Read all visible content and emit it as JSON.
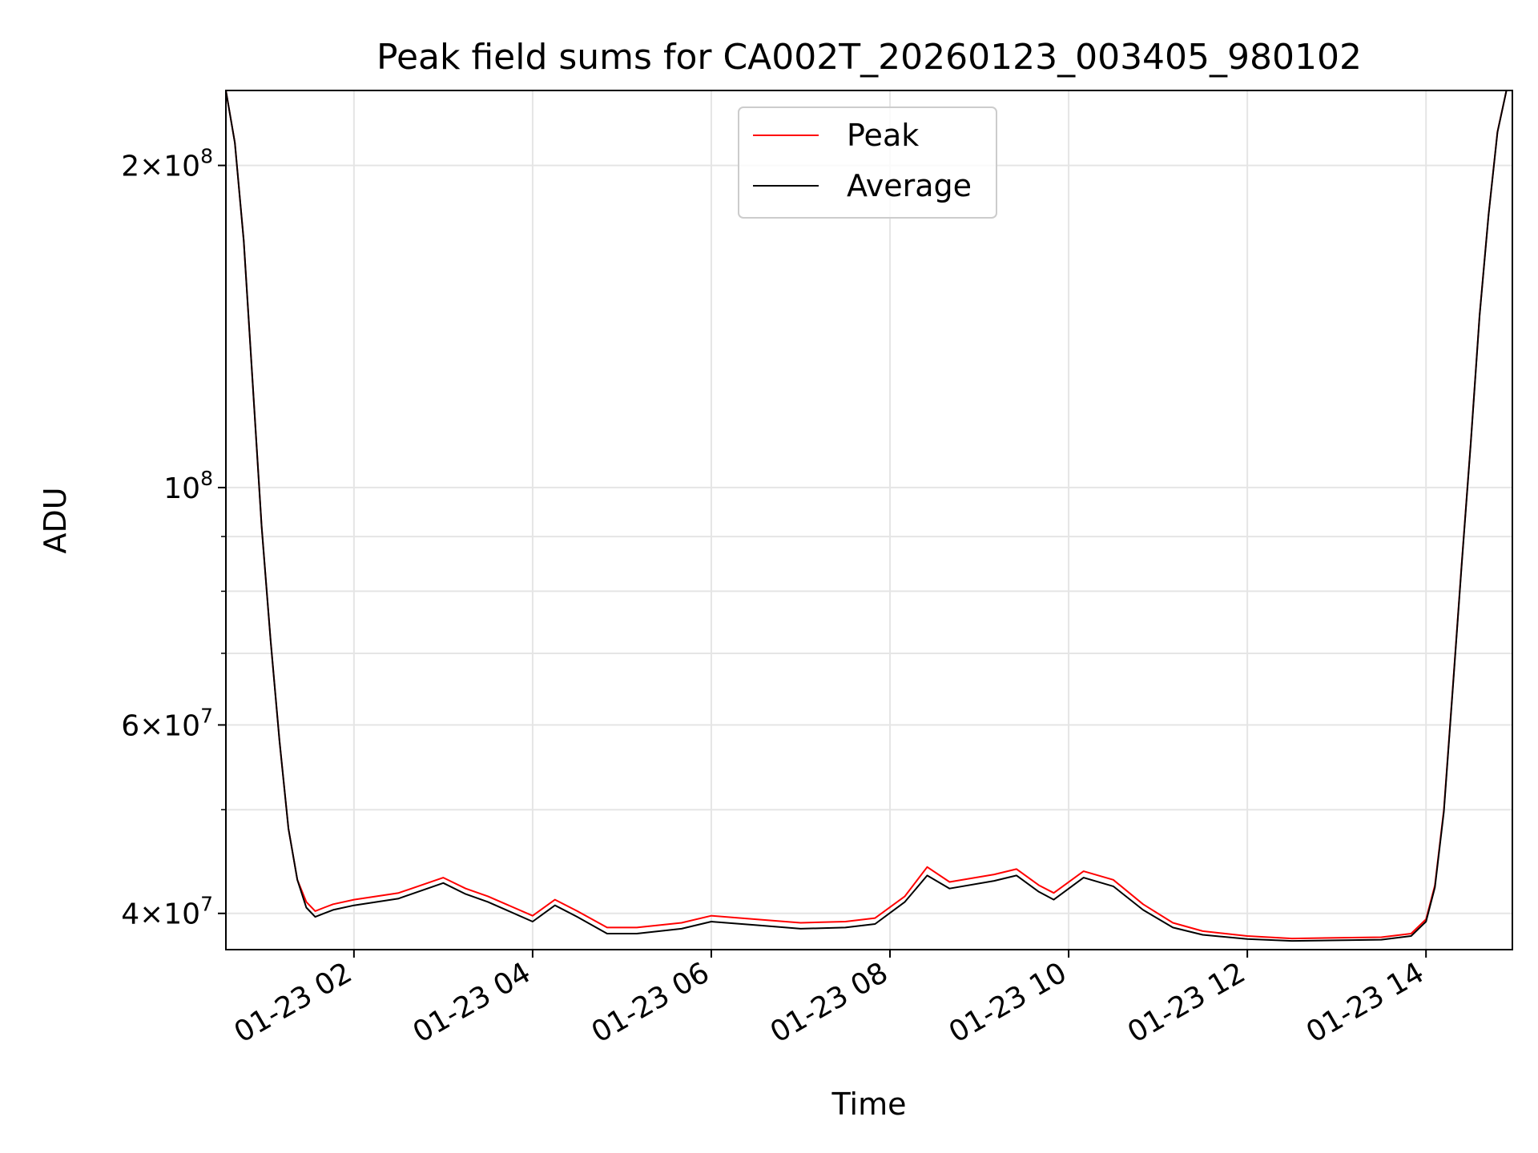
{
  "chart_data": {
    "type": "line",
    "title": "Peak field sums for CA002T_20260123_003405_980102",
    "xlabel": "Time",
    "ylabel": "ADU",
    "yscale": "log",
    "grid": true,
    "legend_position": "top-center",
    "xlim": [
      "2026-01-23T00:34",
      "2026-01-23T14:58"
    ],
    "ylim": [
      37000000,
      235000000
    ],
    "x_ticks": [
      {
        "value": "2026-01-23T02:00",
        "label": "01-23 02"
      },
      {
        "value": "2026-01-23T04:00",
        "label": "01-23 04"
      },
      {
        "value": "2026-01-23T06:00",
        "label": "01-23 06"
      },
      {
        "value": "2026-01-23T08:00",
        "label": "01-23 08"
      },
      {
        "value": "2026-01-23T10:00",
        "label": "01-23 10"
      },
      {
        "value": "2026-01-23T12:00",
        "label": "01-23 12"
      },
      {
        "value": "2026-01-23T14:00",
        "label": "01-23 14"
      }
    ],
    "y_ticks": [
      {
        "value": 40000000,
        "mantissa": "4",
        "exponent": "7"
      },
      {
        "value": 60000000,
        "mantissa": "6",
        "exponent": "7"
      },
      {
        "value": 100000000,
        "mantissa": "",
        "exponent": "8"
      },
      {
        "value": 200000000,
        "mantissa": "2",
        "exponent": "8"
      }
    ],
    "y_minor_ticks": [
      50000000,
      70000000,
      80000000,
      90000000
    ],
    "x": [
      "2026-01-23T00:34",
      "2026-01-23T00:40",
      "2026-01-23T00:46",
      "2026-01-23T00:52",
      "2026-01-23T00:58",
      "2026-01-23T01:04",
      "2026-01-23T01:10",
      "2026-01-23T01:16",
      "2026-01-23T01:22",
      "2026-01-23T01:28",
      "2026-01-23T01:34",
      "2026-01-23T01:40",
      "2026-01-23T01:46",
      "2026-01-23T02:00",
      "2026-01-23T02:30",
      "2026-01-23T03:00",
      "2026-01-23T03:15",
      "2026-01-23T03:30",
      "2026-01-23T04:00",
      "2026-01-23T04:15",
      "2026-01-23T04:30",
      "2026-01-23T04:50",
      "2026-01-23T05:10",
      "2026-01-23T05:40",
      "2026-01-23T06:00",
      "2026-01-23T06:30",
      "2026-01-23T07:00",
      "2026-01-23T07:30",
      "2026-01-23T07:50",
      "2026-01-23T08:10",
      "2026-01-23T08:25",
      "2026-01-23T08:40",
      "2026-01-23T09:10",
      "2026-01-23T09:25",
      "2026-01-23T09:40",
      "2026-01-23T09:50",
      "2026-01-23T10:10",
      "2026-01-23T10:30",
      "2026-01-23T10:50",
      "2026-01-23T11:10",
      "2026-01-23T11:30",
      "2026-01-23T12:00",
      "2026-01-23T12:30",
      "2026-01-23T13:00",
      "2026-01-23T13:30",
      "2026-01-23T13:50",
      "2026-01-23T14:00",
      "2026-01-23T14:06",
      "2026-01-23T14:12",
      "2026-01-23T14:18",
      "2026-01-23T14:24",
      "2026-01-23T14:30",
      "2026-01-23T14:36",
      "2026-01-23T14:42",
      "2026-01-23T14:48",
      "2026-01-23T14:54"
    ],
    "series": [
      {
        "name": "Peak",
        "color": "#ff0000",
        "values": [
          235000000,
          210000000,
          170000000,
          125000000,
          92000000,
          72000000,
          58000000,
          48000000,
          43000000,
          41000000,
          40200000,
          40500000,
          40800000,
          41200000,
          41800000,
          43200000,
          42200000,
          41500000,
          39800000,
          41200000,
          40200000,
          38800000,
          38800000,
          39200000,
          39800000,
          39500000,
          39200000,
          39300000,
          39600000,
          41500000,
          44200000,
          42800000,
          43500000,
          44000000,
          42500000,
          41800000,
          43800000,
          43000000,
          40800000,
          39200000,
          38500000,
          38100000,
          37900000,
          37950000,
          38000000,
          38300000,
          39500000,
          42500000,
          50000000,
          65000000,
          85000000,
          110000000,
          145000000,
          180000000,
          215000000,
          235000000
        ]
      },
      {
        "name": "Average",
        "color": "#000000",
        "values": [
          235000000,
          210000000,
          170000000,
          125000000,
          92000000,
          72000000,
          58000000,
          48000000,
          43000000,
          40500000,
          39700000,
          40000000,
          40300000,
          40700000,
          41300000,
          42700000,
          41700000,
          41000000,
          39300000,
          40700000,
          39700000,
          38300000,
          38300000,
          38700000,
          39300000,
          39000000,
          38700000,
          38800000,
          39100000,
          41000000,
          43400000,
          42200000,
          42900000,
          43400000,
          41900000,
          41200000,
          43200000,
          42400000,
          40300000,
          38800000,
          38200000,
          37850000,
          37700000,
          37750000,
          37800000,
          38100000,
          39300000,
          42300000,
          49800000,
          64800000,
          84800000,
          109800000,
          144800000,
          179800000,
          214800000,
          235000000
        ]
      }
    ]
  }
}
